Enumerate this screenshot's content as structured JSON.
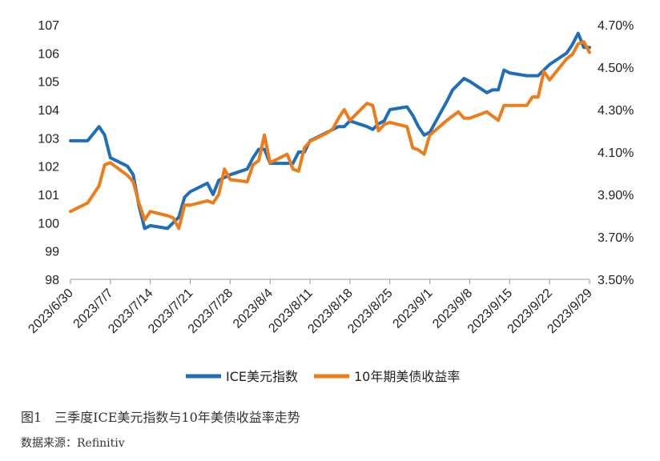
{
  "caption": "图1　三季度ICE美元指数与10年美债收益率走势",
  "source": "数据来源：Refinitiv",
  "chart_data": {
    "type": "line",
    "title": "",
    "grid": false,
    "legend_position": "bottom",
    "y_left": {
      "lim": [
        98,
        107
      ],
      "ticks": [
        "98",
        "99",
        "100",
        "101",
        "102",
        "103",
        "104",
        "105",
        "106",
        "107"
      ]
    },
    "y_right": {
      "lim": [
        3.5,
        4.7
      ],
      "ticks": [
        "3.50%",
        "3.70%",
        "3.90%",
        "4.10%",
        "4.30%",
        "4.50%",
        "4.70%"
      ]
    },
    "x_ticks": [
      "2023/6/30",
      "2023/7/7",
      "2023/7/14",
      "2023/7/21",
      "2023/7/28",
      "2023/8/4",
      "2023/8/11",
      "2023/8/18",
      "2023/8/25",
      "2023/9/1",
      "2023/9/8",
      "2023/9/15",
      "2023/9/22",
      "2023/9/29"
    ],
    "series": [
      {
        "name": "ICE美元指数",
        "axis": "left",
        "color": "#1F6FB8",
        "x": [
          "2023/6/30",
          "2023/7/3",
          "2023/7/5",
          "2023/7/6",
          "2023/7/7",
          "2023/7/10",
          "2023/7/11",
          "2023/7/12",
          "2023/7/13",
          "2023/7/14",
          "2023/7/17",
          "2023/7/18",
          "2023/7/19",
          "2023/7/20",
          "2023/7/21",
          "2023/7/24",
          "2023/7/25",
          "2023/7/26",
          "2023/7/27",
          "2023/7/28",
          "2023/7/31",
          "2023/8/1",
          "2023/8/2",
          "2023/8/3",
          "2023/8/4",
          "2023/8/7",
          "2023/8/8",
          "2023/8/9",
          "2023/8/10",
          "2023/8/11",
          "2023/8/14",
          "2023/8/15",
          "2023/8/16",
          "2023/8/17",
          "2023/8/18",
          "2023/8/21",
          "2023/8/22",
          "2023/8/23",
          "2023/8/24",
          "2023/8/25",
          "2023/8/28",
          "2023/8/29",
          "2023/8/30",
          "2023/8/31",
          "2023/9/1",
          "2023/9/4",
          "2023/9/5",
          "2023/9/6",
          "2023/9/7",
          "2023/9/8",
          "2023/9/11",
          "2023/9/12",
          "2023/9/13",
          "2023/9/14",
          "2023/9/15",
          "2023/9/18",
          "2023/9/19",
          "2023/9/20",
          "2023/9/21",
          "2023/9/22",
          "2023/9/25",
          "2023/9/26",
          "2023/9/27",
          "2023/9/28",
          "2023/9/29"
        ],
        "values": [
          102.9,
          102.9,
          103.4,
          103.1,
          102.3,
          102.0,
          101.7,
          100.6,
          99.8,
          99.9,
          99.8,
          100.0,
          100.2,
          100.9,
          101.1,
          101.4,
          101.0,
          101.5,
          101.6,
          101.7,
          101.9,
          102.3,
          102.6,
          102.6,
          102.1,
          102.1,
          102.1,
          102.5,
          102.5,
          102.9,
          103.2,
          103.3,
          103.4,
          103.4,
          103.6,
          103.4,
          103.3,
          103.5,
          103.6,
          104.0,
          104.1,
          103.8,
          103.4,
          103.1,
          103.2,
          104.3,
          104.7,
          104.9,
          105.1,
          105.0,
          104.6,
          104.7,
          104.7,
          105.4,
          105.3,
          105.2,
          105.2,
          105.2,
          105.4,
          105.6,
          106.0,
          106.3,
          106.7,
          106.2,
          106.2
        ]
      },
      {
        "name": "10年期美债收益率",
        "axis": "right",
        "color": "#ED7D1A",
        "x": [
          "2023/6/30",
          "2023/7/3",
          "2023/7/5",
          "2023/7/6",
          "2023/7/7",
          "2023/7/10",
          "2023/7/11",
          "2023/7/12",
          "2023/7/13",
          "2023/7/14",
          "2023/7/17",
          "2023/7/18",
          "2023/7/19",
          "2023/7/20",
          "2023/7/21",
          "2023/7/24",
          "2023/7/25",
          "2023/7/26",
          "2023/7/27",
          "2023/7/28",
          "2023/7/31",
          "2023/8/1",
          "2023/8/2",
          "2023/8/3",
          "2023/8/4",
          "2023/8/7",
          "2023/8/8",
          "2023/8/9",
          "2023/8/10",
          "2023/8/11",
          "2023/8/14",
          "2023/8/15",
          "2023/8/16",
          "2023/8/17",
          "2023/8/18",
          "2023/8/21",
          "2023/8/22",
          "2023/8/23",
          "2023/8/24",
          "2023/8/25",
          "2023/8/28",
          "2023/8/29",
          "2023/8/30",
          "2023/8/31",
          "2023/9/1",
          "2023/9/4",
          "2023/9/5",
          "2023/9/6",
          "2023/9/7",
          "2023/9/8",
          "2023/9/11",
          "2023/9/12",
          "2023/9/13",
          "2023/9/14",
          "2023/9/15",
          "2023/9/18",
          "2023/9/19",
          "2023/9/20",
          "2023/9/21",
          "2023/9/22",
          "2023/9/25",
          "2023/9/26",
          "2023/9/27",
          "2023/9/28",
          "2023/9/29"
        ],
        "values": [
          3.82,
          3.86,
          3.94,
          4.04,
          4.05,
          3.99,
          3.96,
          3.86,
          3.78,
          3.82,
          3.8,
          3.79,
          3.74,
          3.85,
          3.85,
          3.87,
          3.86,
          3.9,
          4.02,
          3.97,
          3.96,
          4.04,
          4.06,
          4.18,
          4.05,
          4.09,
          4.02,
          4.01,
          4.12,
          4.15,
          4.19,
          4.21,
          4.26,
          4.3,
          4.25,
          4.33,
          4.32,
          4.2,
          4.23,
          4.24,
          4.22,
          4.12,
          4.11,
          4.09,
          4.18,
          4.25,
          4.27,
          4.29,
          4.26,
          4.26,
          4.29,
          4.27,
          4.25,
          4.32,
          4.32,
          4.32,
          4.36,
          4.36,
          4.48,
          4.44,
          4.54,
          4.56,
          4.61,
          4.62,
          4.57
        ]
      }
    ]
  }
}
